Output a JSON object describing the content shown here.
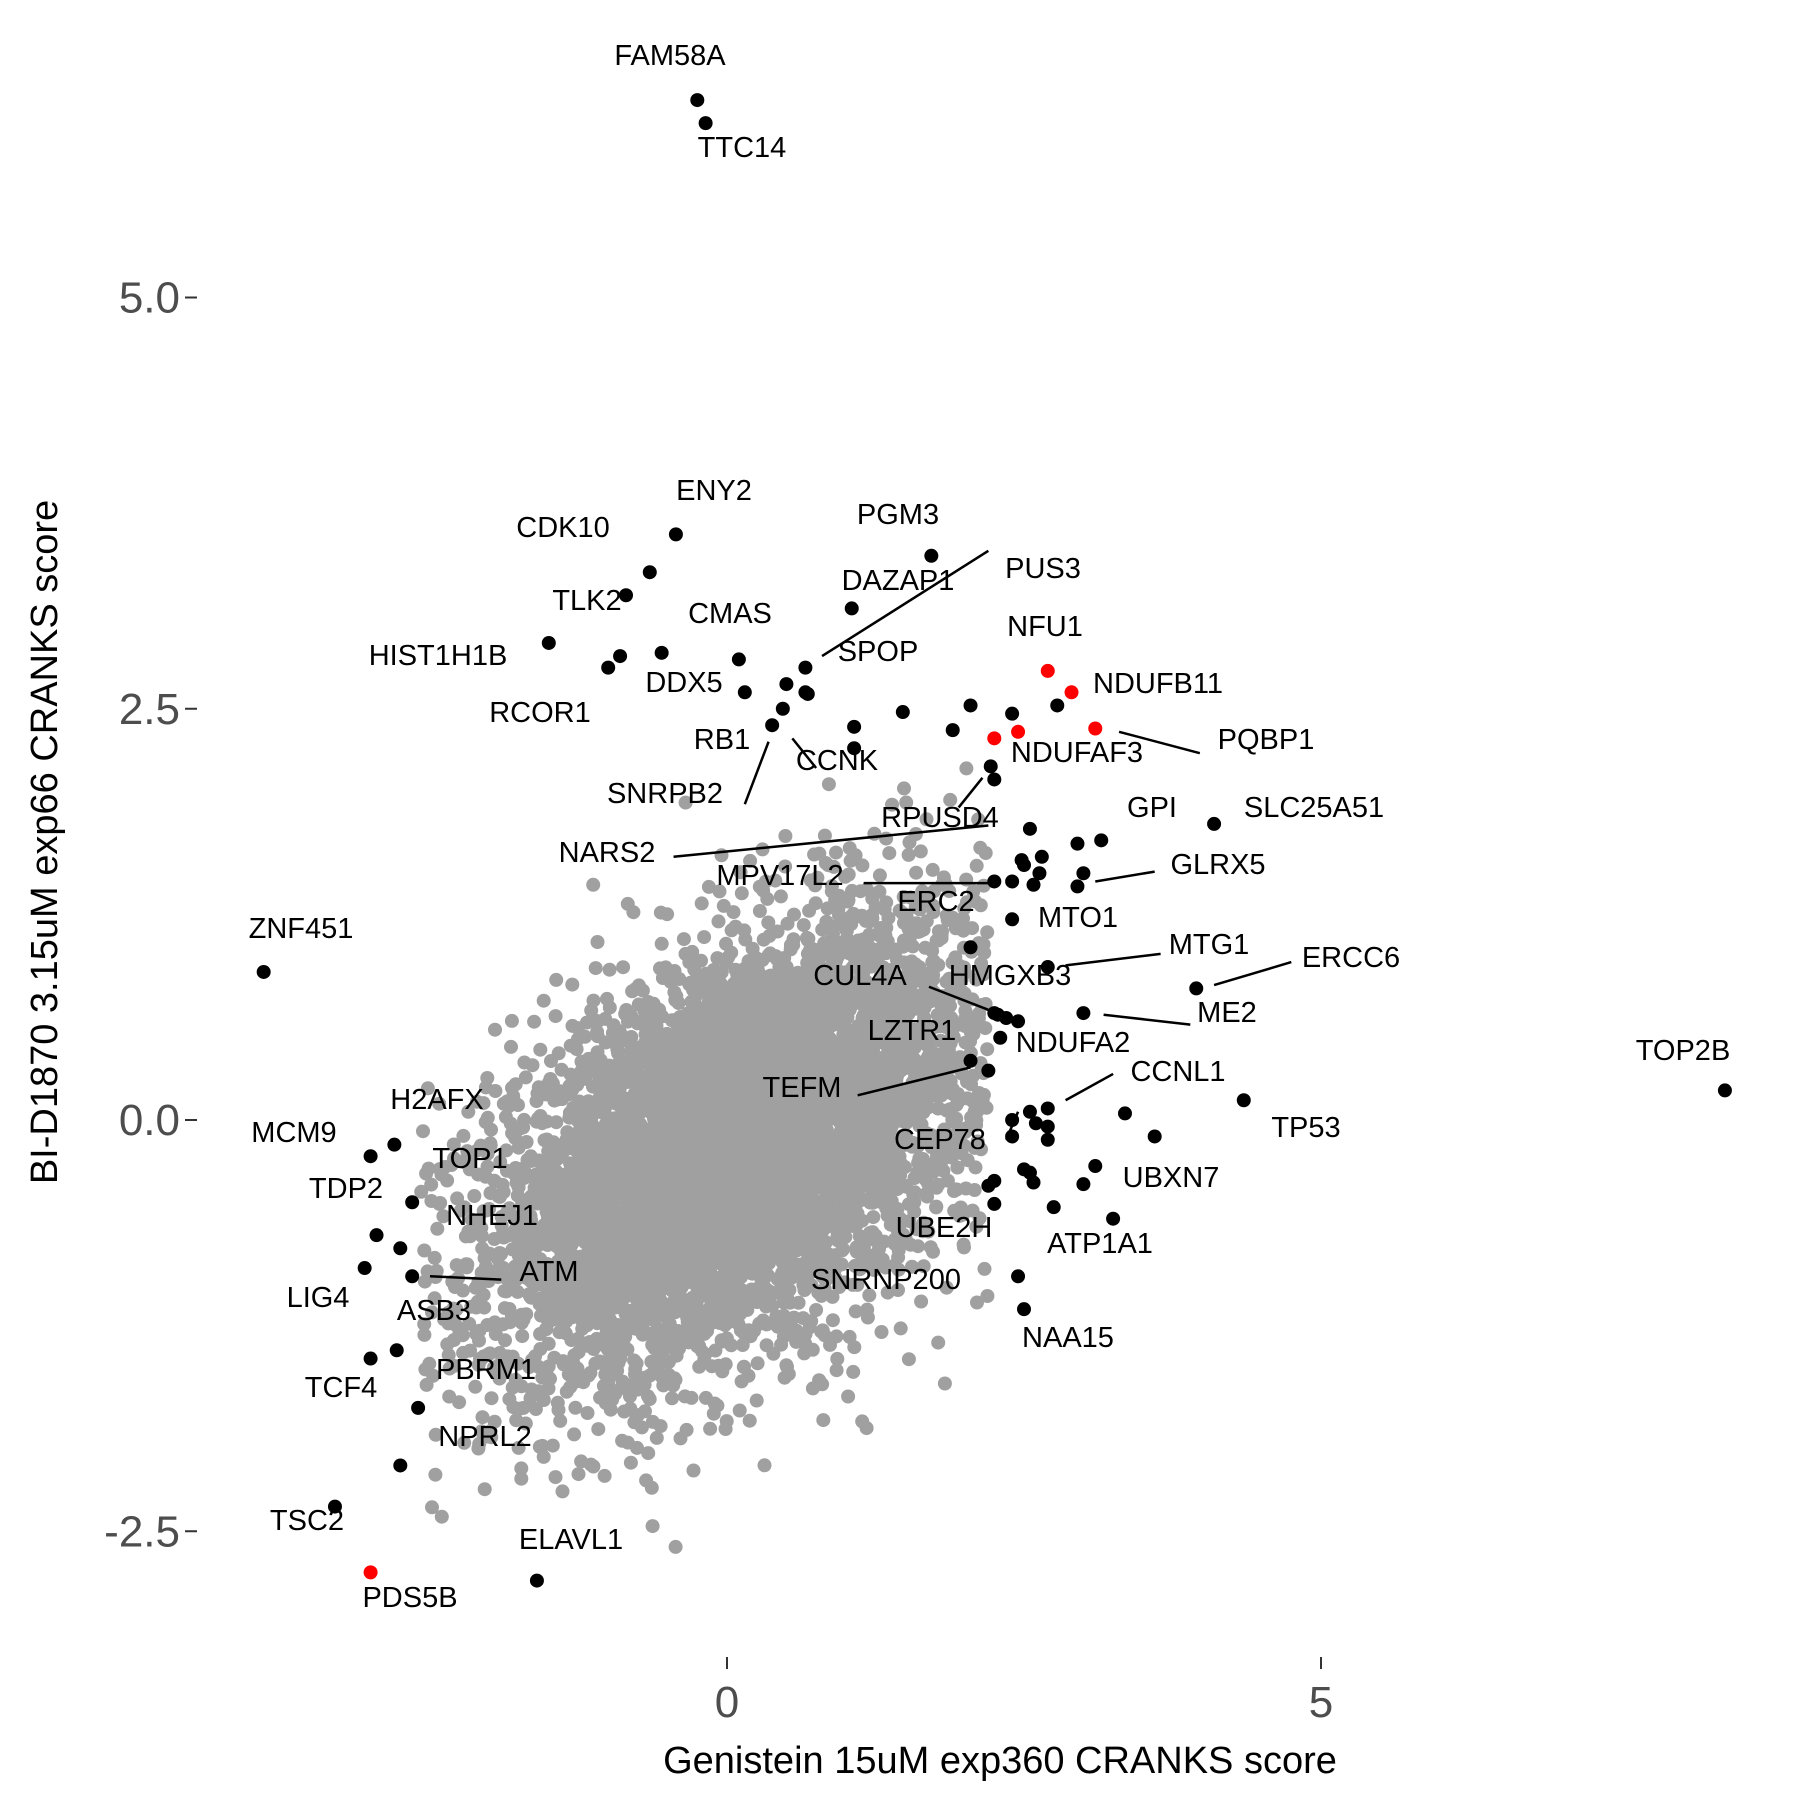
{
  "chart_data": {
    "type": "scatter",
    "title": "",
    "xlabel": "Genistein 15uM exp360 CRANKS score",
    "ylabel": "BI-D1870 3.15uM exp66 CRANKS score",
    "xlim": [
      -4.6,
      9.3
    ],
    "ylim": [
      -3.25,
      6.25
    ],
    "x_ticks": [
      0,
      5
    ],
    "x_tick_labels": [
      "0",
      "5"
    ],
    "y_ticks": [
      -2.5,
      0.0,
      2.5,
      5.0
    ],
    "y_tick_labels": [
      "-2.5",
      "0.0",
      "2.5",
      "5.0"
    ],
    "grid": false,
    "legend": "none",
    "colors": {
      "background": "#ffffff",
      "points": "#a0a0a0",
      "labeled": "#000000",
      "highlight": "#ff0000"
    },
    "background_cloud": {
      "center": [
        0.1,
        -0.15
      ],
      "sd": [
        1.05,
        0.68
      ],
      "correlation": 0.5,
      "count": 6500
    },
    "labeled_points": [
      {
        "label": "FAM58A",
        "x": -0.25,
        "y": 6.2,
        "color": "#000000"
      },
      {
        "label": "TTC14",
        "x": -0.18,
        "y": 6.06,
        "color": "#000000"
      },
      {
        "label": "ENY2",
        "x": -0.43,
        "y": 3.56,
        "color": "#000000"
      },
      {
        "label": "CDK10",
        "x": -0.65,
        "y": 3.33,
        "color": "#000000"
      },
      {
        "label": "TLK2",
        "x": -0.85,
        "y": 3.19,
        "color": "#000000"
      },
      {
        "label": "HIST1H1B",
        "x": -1.5,
        "y": 2.9,
        "color": "#000000"
      },
      {
        "label": "CMAS",
        "x": 0.1,
        "y": 2.8,
        "color": "#000000"
      },
      {
        "label": "RCOR1",
        "x": -1.0,
        "y": 2.75,
        "color": "#000000"
      },
      {
        "label": "DDX5",
        "x": 0.15,
        "y": 2.6,
        "color": "#000000"
      },
      {
        "label": "PGM3",
        "x": 1.72,
        "y": 3.43,
        "color": "#000000"
      },
      {
        "label": "DAZAP1",
        "x": 1.05,
        "y": 3.11,
        "color": "#000000"
      },
      {
        "label": "PUS3",
        "x": 0.66,
        "y": 2.75,
        "color": "#000000"
      },
      {
        "label": "SPOP",
        "x": 0.66,
        "y": 2.6,
        "color": "#000000"
      },
      {
        "label": "RB1",
        "x": 0.38,
        "y": 2.4,
        "color": "#000000"
      },
      {
        "label": "CCNK",
        "x": 0.47,
        "y": 2.5,
        "color": "#000000"
      },
      {
        "label": "SNRPB2",
        "x": 0.5,
        "y": 2.65,
        "color": "#000000"
      },
      {
        "label": "NFU1",
        "x": 2.7,
        "y": 2.73,
        "color": "#ff0000"
      },
      {
        "label": "NDUFB11",
        "x": 2.9,
        "y": 2.6,
        "color": "#ff0000"
      },
      {
        "label": "PQBP1",
        "x": 3.1,
        "y": 2.38,
        "color": "#ff0000"
      },
      {
        "label": "NDUFAF3",
        "x": 2.25,
        "y": 2.32,
        "color": "#ff0000"
      },
      {
        "label": "RPUSD4",
        "x": 2.22,
        "y": 2.15,
        "color": "#000000"
      },
      {
        "label": "NARS2",
        "x": 2.55,
        "y": 1.77,
        "color": "#000000"
      },
      {
        "label": "GPI",
        "x": 3.15,
        "y": 1.7,
        "color": "#000000"
      },
      {
        "label": "SLC25A51",
        "x": 4.1,
        "y": 1.8,
        "color": "#000000"
      },
      {
        "label": "GLRX5",
        "x": 2.95,
        "y": 1.42,
        "color": "#000000"
      },
      {
        "label": "MPV17L2",
        "x": 2.25,
        "y": 1.45,
        "color": "#000000"
      },
      {
        "label": "ERC2",
        "x": 2.4,
        "y": 1.45,
        "color": "#000000"
      },
      {
        "label": "MTO1",
        "x": 2.4,
        "y": 1.22,
        "color": "#000000"
      },
      {
        "label": "MTG1",
        "x": 2.7,
        "y": 0.93,
        "color": "#000000"
      },
      {
        "label": "ERCC6",
        "x": 3.95,
        "y": 0.8,
        "color": "#000000"
      },
      {
        "label": "ME2",
        "x": 3.0,
        "y": 0.65,
        "color": "#000000"
      },
      {
        "label": "CUL4A",
        "x": 2.25,
        "y": 0.65,
        "color": "#000000"
      },
      {
        "label": "HMGXB3",
        "x": 2.45,
        "y": 0.6,
        "color": "#000000"
      },
      {
        "label": "LZTR1",
        "x": 2.05,
        "y": 0.36,
        "color": "#000000"
      },
      {
        "label": "NDUFA2",
        "x": 2.3,
        "y": 0.5,
        "color": "#000000"
      },
      {
        "label": "TEFM",
        "x": 2.2,
        "y": 0.3,
        "color": "#000000"
      },
      {
        "label": "CCNL1",
        "x": 2.7,
        "y": 0.07,
        "color": "#000000"
      },
      {
        "label": "TP53",
        "x": 4.35,
        "y": 0.12,
        "color": "#000000"
      },
      {
        "label": "TOP2B",
        "x": 8.4,
        "y": 0.18,
        "color": "#000000"
      },
      {
        "label": "CEP78",
        "x": 2.4,
        "y": -0.1,
        "color": "#000000"
      },
      {
        "label": "UBXN7",
        "x": 3.1,
        "y": -0.28,
        "color": "#000000"
      },
      {
        "label": "UBE2H",
        "x": 2.2,
        "y": -0.4,
        "color": "#000000"
      },
      {
        "label": "ATP1A1",
        "x": 3.25,
        "y": -0.6,
        "color": "#000000"
      },
      {
        "label": "SNRNP200",
        "x": 2.45,
        "y": -0.95,
        "color": "#000000"
      },
      {
        "label": "NAA15",
        "x": 2.5,
        "y": -1.15,
        "color": "#000000"
      },
      {
        "label": "ZNF451",
        "x": -3.9,
        "y": 0.9,
        "color": "#000000"
      },
      {
        "label": "H2AFX",
        "x": -2.8,
        "y": -0.15,
        "color": "#000000"
      },
      {
        "label": "MCM9",
        "x": -3.0,
        "y": -0.22,
        "color": "#000000"
      },
      {
        "label": "TOP1",
        "x": -2.65,
        "y": -0.5,
        "color": "#000000"
      },
      {
        "label": "TDP2",
        "x": -2.95,
        "y": -0.7,
        "color": "#000000"
      },
      {
        "label": "NHEJ1",
        "x": -2.75,
        "y": -0.78,
        "color": "#000000"
      },
      {
        "label": "ATM",
        "x": -2.65,
        "y": -0.95,
        "color": "#000000"
      },
      {
        "label": "LIG4",
        "x": -3.05,
        "y": -0.9,
        "color": "#000000"
      },
      {
        "label": "ASB3",
        "x": -2.78,
        "y": -1.4,
        "color": "#000000"
      },
      {
        "label": "TCF4",
        "x": -3.0,
        "y": -1.45,
        "color": "#000000"
      },
      {
        "label": "PBRM1",
        "x": -2.6,
        "y": -1.75,
        "color": "#000000"
      },
      {
        "label": "NPRL2",
        "x": -2.75,
        "y": -2.1,
        "color": "#000000"
      },
      {
        "label": "TSC2",
        "x": -3.3,
        "y": -2.35,
        "color": "#000000"
      },
      {
        "label": "PDS5B",
        "x": -3.0,
        "y": -2.75,
        "color": "#ff0000"
      },
      {
        "label": "ELAVL1",
        "x": -1.6,
        "y": -2.8,
        "color": "#000000"
      }
    ],
    "unlabeled_points": [
      {
        "x": -0.9,
        "y": 2.82,
        "color": "#000000"
      },
      {
        "x": -0.55,
        "y": 2.84,
        "color": "#000000"
      },
      {
        "x": 0.68,
        "y": 2.59,
        "color": "#000000"
      },
      {
        "x": 1.07,
        "y": 2.39,
        "color": "#000000"
      },
      {
        "x": 1.07,
        "y": 2.26,
        "color": "#000000"
      },
      {
        "x": 1.48,
        "y": 2.48,
        "color": "#000000"
      },
      {
        "x": 1.9,
        "y": 2.37,
        "color": "#000000"
      },
      {
        "x": 2.05,
        "y": 2.52,
        "color": "#000000"
      },
      {
        "x": 2.4,
        "y": 2.47,
        "color": "#000000"
      },
      {
        "x": 2.78,
        "y": 2.52,
        "color": "#000000"
      },
      {
        "x": 2.45,
        "y": 2.36,
        "color": "#ff0000"
      },
      {
        "x": 2.25,
        "y": 2.07,
        "color": "#000000"
      },
      {
        "x": 2.48,
        "y": 1.58,
        "color": "#000000"
      },
      {
        "x": 2.65,
        "y": 1.6,
        "color": "#000000"
      },
      {
        "x": 2.5,
        "y": 1.55,
        "color": "#000000"
      },
      {
        "x": 2.63,
        "y": 1.5,
        "color": "#000000"
      },
      {
        "x": 3.0,
        "y": 1.5,
        "color": "#000000"
      },
      {
        "x": 2.95,
        "y": 1.68,
        "color": "#000000"
      },
      {
        "x": 2.58,
        "y": 1.43,
        "color": "#000000"
      },
      {
        "x": 2.05,
        "y": 1.05,
        "color": "#000000"
      },
      {
        "x": 2.35,
        "y": 0.62,
        "color": "#000000"
      },
      {
        "x": 2.28,
        "y": 0.64,
        "color": "#000000"
      },
      {
        "x": 2.55,
        "y": 0.05,
        "color": "#000000"
      },
      {
        "x": 2.7,
        "y": -0.04,
        "color": "#000000"
      },
      {
        "x": 2.6,
        "y": -0.02,
        "color": "#000000"
      },
      {
        "x": 2.4,
        "y": 0.0,
        "color": "#000000"
      },
      {
        "x": 2.7,
        "y": -0.12,
        "color": "#000000"
      },
      {
        "x": 3.35,
        "y": 0.04,
        "color": "#000000"
      },
      {
        "x": 3.6,
        "y": -0.1,
        "color": "#000000"
      },
      {
        "x": 2.25,
        "y": -0.37,
        "color": "#000000"
      },
      {
        "x": 2.55,
        "y": -0.32,
        "color": "#000000"
      },
      {
        "x": 2.5,
        "y": -0.3,
        "color": "#000000"
      },
      {
        "x": 2.58,
        "y": -0.38,
        "color": "#000000"
      },
      {
        "x": 2.75,
        "y": -0.53,
        "color": "#000000"
      },
      {
        "x": 3.0,
        "y": -0.39,
        "color": "#000000"
      },
      {
        "x": 2.25,
        "y": -0.51,
        "color": "#000000"
      }
    ],
    "leader_lines": [
      {
        "from": [
          0.8,
          2.82
        ],
        "to": [
          2.2,
          3.46
        ]
      },
      {
        "from": [
          0.55,
          2.32
        ],
        "to": [
          0.75,
          2.14
        ]
      },
      {
        "from": [
          0.35,
          2.3
        ],
        "to": [
          0.15,
          1.92
        ]
      },
      {
        "from": [
          3.3,
          2.36
        ],
        "to": [
          3.98,
          2.23
        ]
      },
      {
        "from": [
          1.95,
          1.9
        ],
        "to": [
          2.15,
          2.08
        ]
      },
      {
        "from": [
          -0.45,
          1.6
        ],
        "to": [
          2.2,
          1.79
        ]
      },
      {
        "from": [
          1.15,
          1.44
        ],
        "to": [
          2.2,
          1.44
        ]
      },
      {
        "from": [
          3.1,
          1.45
        ],
        "to": [
          3.6,
          1.51
        ]
      },
      {
        "from": [
          2.85,
          0.94
        ],
        "to": [
          3.65,
          1.01
        ]
      },
      {
        "from": [
          4.1,
          0.82
        ],
        "to": [
          4.75,
          0.96
        ]
      },
      {
        "from": [
          3.17,
          0.64
        ],
        "to": [
          3.9,
          0.58
        ]
      },
      {
        "from": [
          1.7,
          0.81
        ],
        "to": [
          2.2,
          0.67
        ]
      },
      {
        "from": [
          1.1,
          0.15
        ],
        "to": [
          2.05,
          0.32
        ]
      },
      {
        "from": [
          2.85,
          0.12
        ],
        "to": [
          3.25,
          0.28
        ]
      },
      {
        "from": [
          2.35,
          -0.12
        ],
        "to": [
          2.45,
          0.05
        ]
      },
      {
        "from": [
          -2.5,
          -0.95
        ],
        "to": [
          -1.9,
          -0.97
        ]
      }
    ]
  }
}
